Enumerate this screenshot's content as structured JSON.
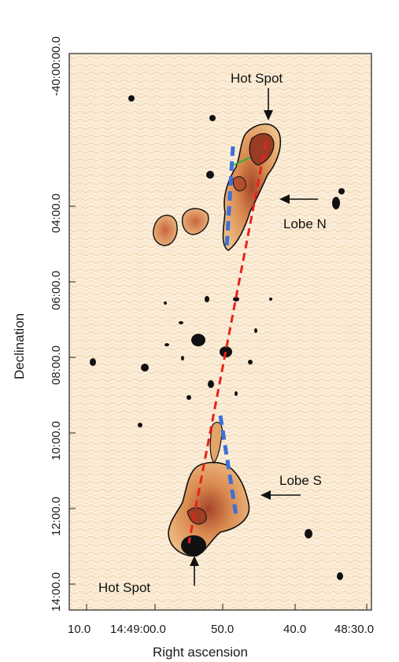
{
  "figure": {
    "x_axis_title": "Right ascension",
    "y_axis_title": "Declination",
    "x_ticks": [
      "10.0",
      "14:49:00.0",
      "50.0",
      "40.0",
      "48:30.0"
    ],
    "y_ticks": [
      "-40:00:00.0",
      "04:00.0",
      "06:00.0",
      "08:00.0",
      "10:00.0",
      "12:00.0",
      "14:00.0"
    ],
    "annotations": {
      "hot_spot_north": "Hot Spot",
      "lobe_north": "Lobe N",
      "lobe_south": "Lobe S",
      "hot_spot_south": "Hot Spot"
    },
    "colors": {
      "background_map": "#f9e7cc",
      "contour": "#111111",
      "emission_core": "#b24a2a",
      "emission_mid": "#d9884c",
      "axis_line_red": "#e8211d",
      "axis_line_blue": "#3d6fd9",
      "axis_line_green": "#2fb03a"
    }
  }
}
